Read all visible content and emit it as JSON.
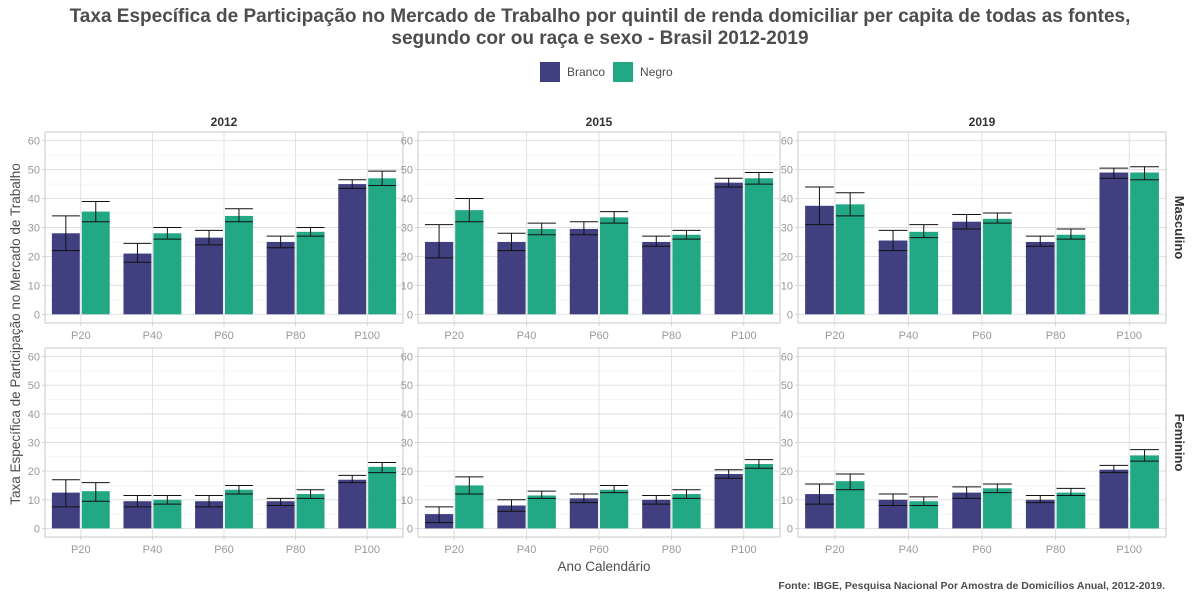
{
  "title_line1": "Taxa Específica de Participação no Mercado de Trabalho por quintil de renda domiciliar per capita de todas as fontes,",
  "title_line2": "segundo cor ou raça e sexo - Brasil 2012-2019",
  "caption": "Fonte: IBGE, Pesquisa Nacional Por Amostra de Domicílios Anual, 2012-2019.",
  "colors": {
    "Branco": "#404080",
    "Negro": "#22a884"
  },
  "chart_data": {
    "type": "bar",
    "xlabel": "Ano Calendário",
    "ylabel": "Taxa Específica de Participação no Mercado de Trabalho",
    "ylim": [
      -3,
      63
    ],
    "yticks": [
      0,
      10,
      20,
      30,
      40,
      50,
      60
    ],
    "categories": [
      "P20",
      "P40",
      "P60",
      "P80",
      "P100"
    ],
    "columns": [
      "2012",
      "2015",
      "2019"
    ],
    "rows": [
      "Masculino",
      "Feminino"
    ],
    "series_names": [
      "Branco",
      "Negro"
    ],
    "legend_position": "top",
    "grid": true,
    "panels": [
      {
        "row": "Masculino",
        "col": "2012",
        "series": [
          {
            "name": "Branco",
            "values": [
              28,
              21,
              26.5,
              25,
              45
            ],
            "lower": [
              22,
              18,
              24,
              23,
              43.5
            ],
            "upper": [
              34,
              24.5,
              29,
              27,
              46.5
            ]
          },
          {
            "name": "Negro",
            "values": [
              35.5,
              28,
              34,
              28.5,
              47
            ],
            "lower": [
              32,
              26,
              32,
              27,
              44.5
            ],
            "upper": [
              39,
              30,
              36.5,
              30,
              49.5
            ]
          }
        ]
      },
      {
        "row": "Masculino",
        "col": "2015",
        "series": [
          {
            "name": "Branco",
            "values": [
              25,
              25,
              29.5,
              25,
              45.5
            ],
            "lower": [
              19.5,
              22,
              27.5,
              23.5,
              44
            ],
            "upper": [
              31,
              28,
              32,
              27,
              47
            ]
          },
          {
            "name": "Negro",
            "values": [
              36,
              29.5,
              33.5,
              27.5,
              47
            ],
            "lower": [
              32,
              27.5,
              31.5,
              26,
              45
            ],
            "upper": [
              40,
              31.5,
              35.5,
              29,
              49
            ]
          }
        ]
      },
      {
        "row": "Masculino",
        "col": "2019",
        "series": [
          {
            "name": "Branco",
            "values": [
              37.5,
              25.5,
              32,
              25,
              49
            ],
            "lower": [
              31,
              22,
              29.5,
              23.5,
              47
            ],
            "upper": [
              44,
              29,
              34.5,
              27,
              50.5
            ]
          },
          {
            "name": "Negro",
            "values": [
              38,
              28.5,
              33,
              27.5,
              49
            ],
            "lower": [
              34,
              26.5,
              31.5,
              26,
              46.5
            ],
            "upper": [
              42,
              31,
              35,
              29.5,
              51
            ]
          }
        ]
      },
      {
        "row": "Feminino",
        "col": "2012",
        "series": [
          {
            "name": "Branco",
            "values": [
              12.5,
              9.5,
              9.5,
              9.5,
              17
            ],
            "lower": [
              7.5,
              7.5,
              7.5,
              8,
              16
            ],
            "upper": [
              17,
              11.5,
              11.5,
              10.5,
              18.5
            ]
          },
          {
            "name": "Negro",
            "values": [
              13,
              10,
              13.5,
              12,
              21.5
            ],
            "lower": [
              9.5,
              8.5,
              12,
              10.5,
              19.5
            ],
            "upper": [
              16,
              11.5,
              15,
              13.5,
              23
            ]
          }
        ]
      },
      {
        "row": "Feminino",
        "col": "2015",
        "series": [
          {
            "name": "Branco",
            "values": [
              5,
              8,
              10.5,
              10,
              19
            ],
            "lower": [
              2,
              6,
              9,
              8.5,
              17.5
            ],
            "upper": [
              7.5,
              10,
              12,
              11.5,
              20.5
            ]
          },
          {
            "name": "Negro",
            "values": [
              15,
              11.5,
              13.5,
              12,
              22.5
            ],
            "lower": [
              12,
              10.5,
              12.5,
              10.5,
              21
            ],
            "upper": [
              18,
              13,
              15,
              13.5,
              24
            ]
          }
        ]
      },
      {
        "row": "Feminino",
        "col": "2019",
        "series": [
          {
            "name": "Branco",
            "values": [
              12,
              10,
              12.5,
              10,
              20.5
            ],
            "lower": [
              8.5,
              8,
              10.5,
              9,
              19.5
            ],
            "upper": [
              15.5,
              12,
              14.5,
              11.5,
              22
            ]
          },
          {
            "name": "Negro",
            "values": [
              16.5,
              9.5,
              14,
              12.5,
              25.5
            ],
            "lower": [
              13.5,
              8,
              12.5,
              11.5,
              23.5
            ],
            "upper": [
              19,
              11,
              15.5,
              14,
              27.5
            ]
          }
        ]
      }
    ]
  }
}
